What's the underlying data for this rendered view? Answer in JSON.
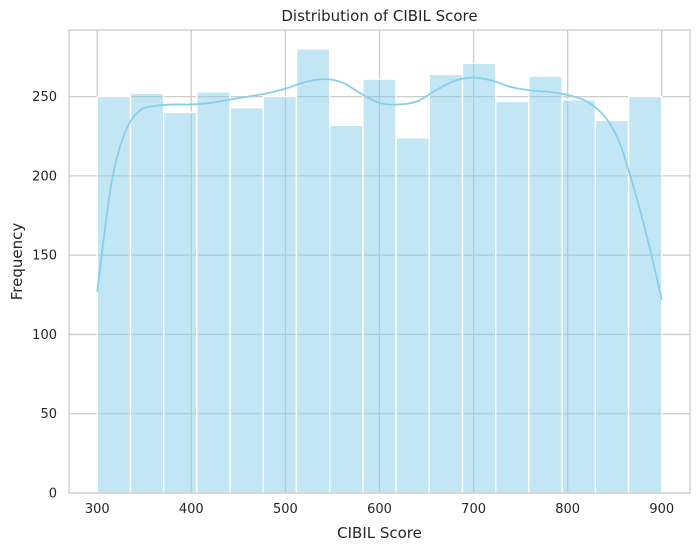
{
  "chart_data": {
    "type": "bar",
    "title": "Distribution of CIBIL Score",
    "xlabel": "CIBIL Score",
    "ylabel": "Frequency",
    "xlim": [
      270,
      930
    ],
    "ylim": [
      0,
      292
    ],
    "x_ticks": [
      300,
      400,
      500,
      600,
      700,
      800,
      900
    ],
    "y_ticks": [
      0,
      50,
      100,
      150,
      200,
      250
    ],
    "grid": true,
    "bin_edges": [
      300,
      335.3,
      370.6,
      405.9,
      441.2,
      476.5,
      511.8,
      547.1,
      582.4,
      617.6,
      652.9,
      688.2,
      723.5,
      758.8,
      794.1,
      829.4,
      864.7,
      900
    ],
    "values": [
      250,
      252,
      240,
      253,
      243,
      250,
      280,
      232,
      261,
      224,
      264,
      271,
      247,
      263,
      248,
      235,
      250
    ],
    "kde": {
      "x": [
        300,
        315,
        330,
        345,
        360,
        380,
        400,
        420,
        440,
        460,
        480,
        500,
        520,
        540,
        560,
        580,
        600,
        620,
        640,
        660,
        680,
        700,
        720,
        740,
        760,
        780,
        800,
        820,
        840,
        855,
        870,
        885,
        900
      ],
      "y": [
        127,
        195,
        228,
        241,
        244,
        245,
        245,
        246,
        248,
        250,
        252,
        255,
        259,
        261,
        259,
        252,
        246,
        245,
        247,
        254,
        260,
        262,
        260,
        256,
        254,
        253,
        251,
        247,
        237,
        221,
        193,
        160,
        122
      ]
    },
    "colors": {
      "bar_fill": "#87CEEB",
      "bar_opacity": 0.5,
      "kde_line": "#87CEEB",
      "grid": "#cccccc",
      "axis": "#cccccc",
      "text": "#262626"
    }
  }
}
